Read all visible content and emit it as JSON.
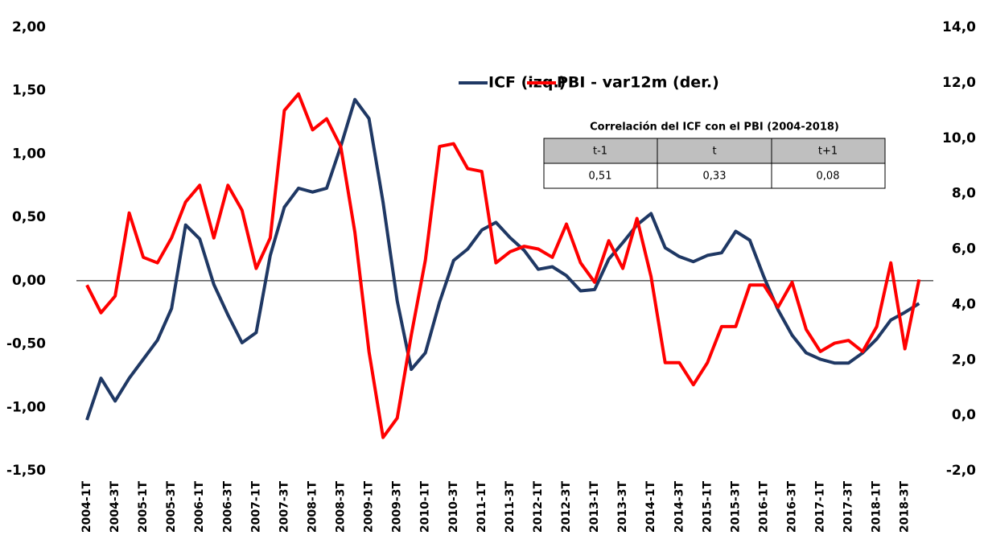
{
  "chart_data": {
    "type": "line",
    "categories": [
      "2004-1T",
      null,
      "2004-3T",
      null,
      "2005-1T",
      null,
      "2005-3T",
      null,
      "2006-1T",
      null,
      "2006-3T",
      null,
      "2007-1T",
      null,
      "2007-3T",
      null,
      "2008-1T",
      null,
      "2008-3T",
      null,
      "2009-1T",
      null,
      "2009-3T",
      null,
      "2010-1T",
      null,
      "2010-3T",
      null,
      "2011-1T",
      null,
      "2011-3T",
      null,
      "2012-1T",
      null,
      "2012-3T",
      null,
      "2013-1T",
      null,
      "2013-3T",
      null,
      "2014-1T",
      null,
      "2014-3T",
      null,
      "2015-1T",
      null,
      "2015-3T",
      null,
      "2016-1T",
      null,
      "2016-3T",
      null,
      "2017-1T",
      null,
      "2017-3T",
      null,
      "2018-1T",
      null,
      "2018-3T",
      null
    ],
    "series": [
      {
        "name": "ICF (izq.)",
        "color": "#1f3864",
        "axis": "y",
        "values": [
          -1.1,
          -0.77,
          -0.95,
          -0.77,
          -0.62,
          -0.47,
          -0.22,
          0.44,
          0.33,
          -0.03,
          -0.27,
          -0.49,
          -0.41,
          0.2,
          0.58,
          0.73,
          0.7,
          0.73,
          1.06,
          1.43,
          1.28,
          0.62,
          -0.16,
          -0.7,
          -0.57,
          -0.17,
          0.16,
          0.25,
          0.4,
          0.46,
          0.34,
          0.24,
          0.09,
          0.11,
          0.04,
          -0.08,
          -0.07,
          0.17,
          0.3,
          0.44,
          0.53,
          0.26,
          0.19,
          0.15,
          0.2,
          0.22,
          0.39,
          0.32,
          0.03,
          -0.23,
          -0.43,
          -0.57,
          -0.62,
          -0.65,
          -0.65,
          -0.57,
          -0.46,
          -0.31,
          -0.25,
          -0.18
        ]
      },
      {
        "name": "PBI - var12m (der.)",
        "color": "#ff0000",
        "axis": "y2",
        "values": [
          4.7,
          3.7,
          4.3,
          7.3,
          5.7,
          5.5,
          6.4,
          7.7,
          8.3,
          6.4,
          8.3,
          7.4,
          5.3,
          6.4,
          11.0,
          11.6,
          10.3,
          10.7,
          9.7,
          6.6,
          2.3,
          -0.8,
          -0.1,
          2.9,
          5.6,
          9.7,
          9.8,
          8.9,
          8.8,
          5.5,
          5.9,
          6.1,
          6.0,
          5.7,
          6.9,
          5.5,
          4.8,
          6.3,
          5.3,
          7.1,
          5.0,
          1.9,
          1.9,
          1.1,
          1.9,
          3.2,
          3.2,
          4.7,
          4.7,
          3.9,
          4.8,
          3.1,
          2.3,
          2.6,
          2.7,
          2.3,
          3.2,
          5.5,
          2.4,
          4.9
        ]
      }
    ],
    "ylim": [
      -1.5,
      2
    ],
    "yticks": [
      {
        "value": -1.5,
        "label": "-1,50"
      },
      {
        "value": -1,
        "label": "-1,00"
      },
      {
        "value": -0.5,
        "label": "-0,50"
      },
      {
        "value": 0,
        "label": "0,00"
      },
      {
        "value": 0.5,
        "label": "0,50"
      },
      {
        "value": 1,
        "label": "1,00"
      },
      {
        "value": 1.5,
        "label": "1,50"
      },
      {
        "value": 2,
        "label": "2,00"
      }
    ],
    "y2lim": [
      -2,
      14
    ],
    "y2ticks": [
      {
        "value": -2,
        "label": "-2,0"
      },
      {
        "value": 0,
        "label": "0,0"
      },
      {
        "value": 2,
        "label": "2,0"
      },
      {
        "value": 4,
        "label": "4,0"
      },
      {
        "value": 6,
        "label": "6,0"
      },
      {
        "value": 8,
        "label": "8,0"
      },
      {
        "value": 10,
        "label": "10,0"
      },
      {
        "value": 12,
        "label": "12,0"
      },
      {
        "value": 14,
        "label": "14,0"
      }
    ],
    "legend": "top-right",
    "table": {
      "title": "Correlación del ICF con el PBI (2004-2018)",
      "columns": [
        "t-1",
        "t",
        "t+1"
      ],
      "rows": [
        [
          "0,51",
          "0,33",
          "0,08"
        ]
      ]
    }
  }
}
